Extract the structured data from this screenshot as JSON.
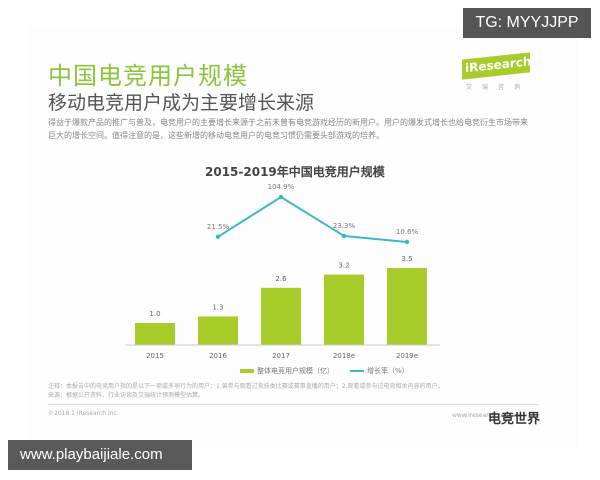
{
  "header": {
    "title": "中国电竞用户规模",
    "subtitle": "移动电竞用户成为主要增长来源",
    "description": "得益于爆款产品的推广与普及，电竞用户的主要增长来源于之前未曾有电竞游戏经历的新用户。用户的爆发式增长也给电竞衍生市场带来巨大的增长空间。值得注意的是，这些新增的移动电竞用户的电竞习惯仍需要头部游戏的培养。",
    "logo": "iResearch",
    "logo_sub": "艾瑞咨询"
  },
  "chart_data": {
    "type": "bar",
    "title": "2015-2019年中国电竞用户规模",
    "categories": [
      "2015",
      "2016",
      "2017",
      "2018e",
      "2019e"
    ],
    "series": [
      {
        "name": "整体电竞用户规模（亿）",
        "type": "bar",
        "values": [
          1.0,
          1.3,
          2.6,
          3.2,
          3.5
        ],
        "color": "#a8cc2a"
      },
      {
        "name": "增长率（%）",
        "type": "line",
        "values": [
          null,
          21.5,
          104.9,
          23.3,
          10.6
        ],
        "labels": [
          "",
          "21.5%",
          "104.9%",
          "23.3%",
          "10.6%"
        ],
        "color": "#3bb8c8"
      }
    ],
    "bar_labels": [
      "1.0",
      "1.3",
      "2.6",
      "3.2",
      "3.5"
    ],
    "xlabel": "",
    "ylabel": "",
    "grid": false,
    "legend_position": "bottom"
  },
  "legend": {
    "bar": "整体电竞用户规模（亿）",
    "line": "增长率（%）"
  },
  "footer": {
    "note": "注释：本报告中的电竞用户指的是以下一项或多项行为的用户：1.曾参与观看过竞技类比赛或赛事直播的用户；2.观看或参与过电竞相关内容的用户。",
    "source": "来源：根据公开资料、行业访谈及艾瑞统计预测模型估算。",
    "copyright": "©2018.1 iResearch Inc.",
    "watermark_url": "www.iresearch.com.cn",
    "watermark_brand": "电竞世界"
  },
  "overlays": {
    "tg": "TG: MYYJJPP",
    "site": "www.playbaijiale.com"
  }
}
